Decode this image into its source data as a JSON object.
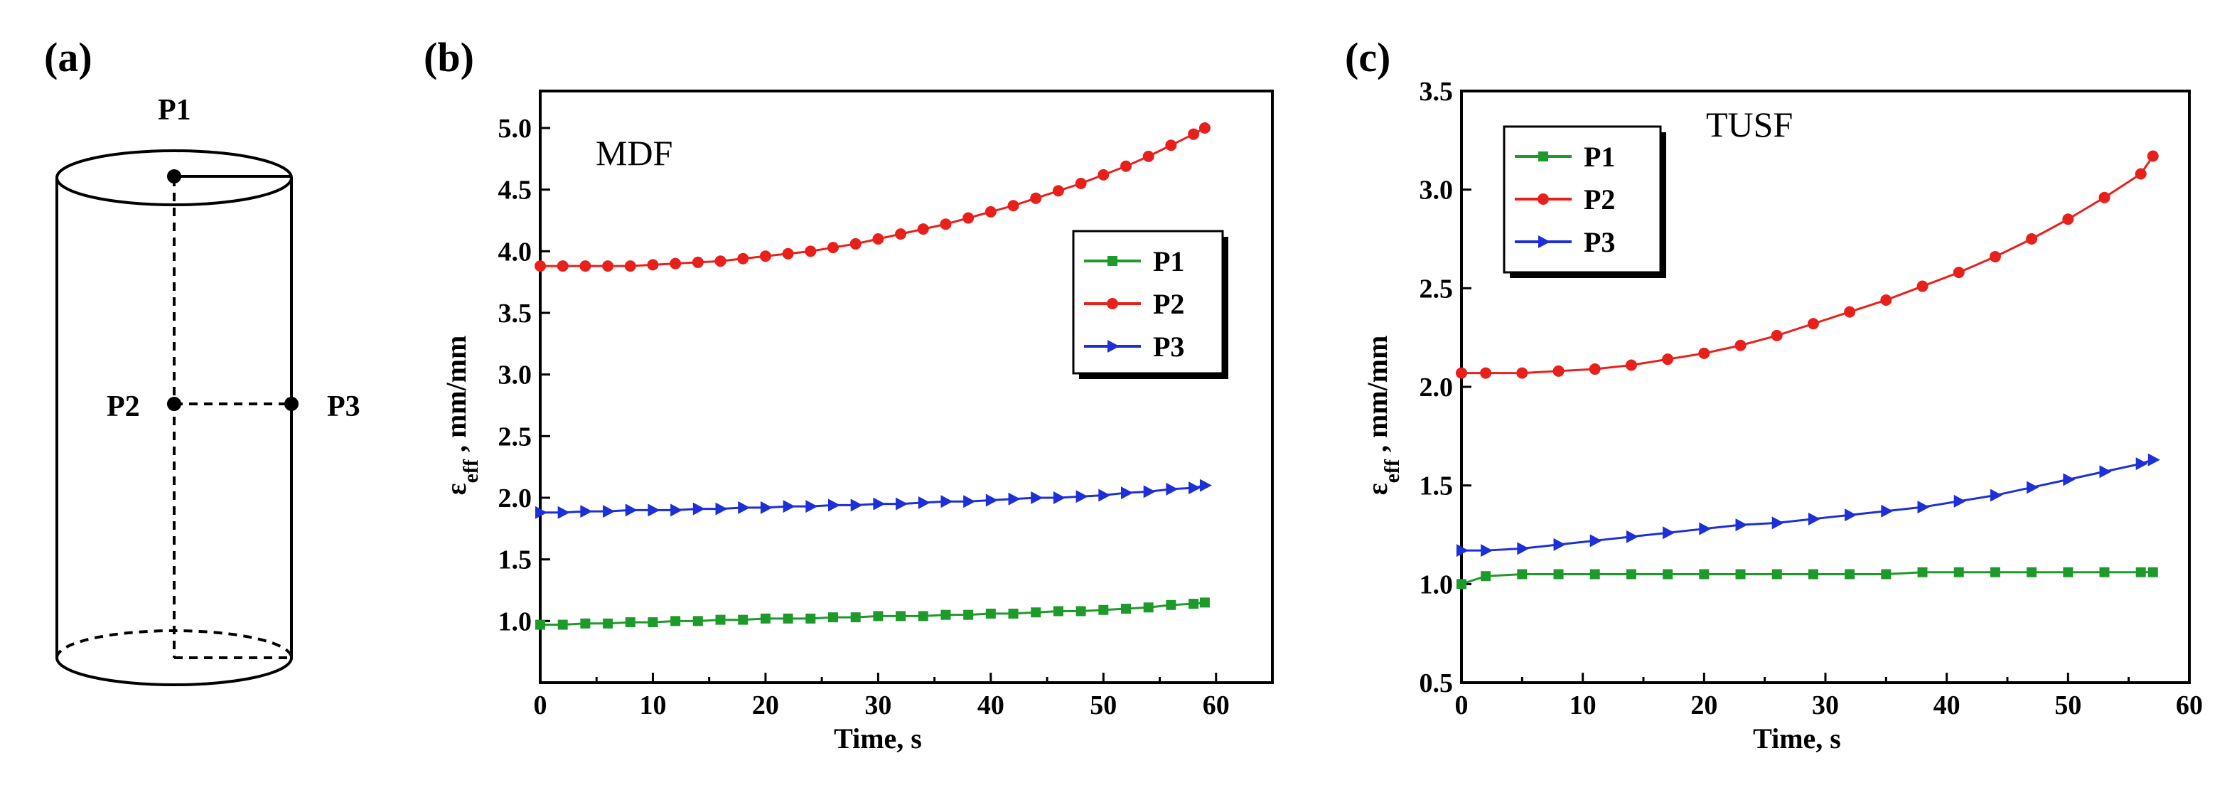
{
  "panel_a": {
    "label": "(a)",
    "points": [
      "P1",
      "P2",
      "P3"
    ]
  },
  "chart_data": [
    {
      "panel_label": "(b)",
      "type": "line",
      "title": "MDF",
      "xlabel": "Time, s",
      "ylabel_main": "ε",
      "ylabel_sub": "eff",
      "ylabel_rest": " , mm/mm",
      "xlim": [
        0,
        65
      ],
      "ylim": [
        0.5,
        5.3
      ],
      "xticks": [
        0,
        10,
        20,
        30,
        40,
        50,
        60
      ],
      "yticks": [
        1.0,
        1.5,
        2.0,
        2.5,
        3.0,
        3.5,
        4.0,
        4.5,
        5.0
      ],
      "ytick_labels": [
        "1.0",
        "1.5",
        "2.0",
        "2.5",
        "3.0",
        "3.5",
        "4.0",
        "4.5",
        "5.0"
      ],
      "legend_position": "right-middle",
      "series": [
        {
          "name": "P1",
          "color": "#1e9a2a",
          "marker": "square",
          "x": [
            0,
            2,
            4,
            6,
            8,
            10,
            12,
            14,
            16,
            18,
            20,
            22,
            24,
            26,
            28,
            30,
            32,
            34,
            36,
            38,
            40,
            42,
            44,
            46,
            48,
            50,
            52,
            54,
            56,
            58,
            59
          ],
          "y": [
            0.97,
            0.97,
            0.98,
            0.98,
            0.99,
            0.99,
            1.0,
            1.0,
            1.01,
            1.01,
            1.02,
            1.02,
            1.02,
            1.03,
            1.03,
            1.04,
            1.04,
            1.04,
            1.05,
            1.05,
            1.06,
            1.06,
            1.07,
            1.08,
            1.08,
            1.09,
            1.1,
            1.11,
            1.13,
            1.14,
            1.15
          ]
        },
        {
          "name": "P2",
          "color": "#e8201c",
          "marker": "circle",
          "x": [
            0,
            2,
            4,
            6,
            8,
            10,
            12,
            14,
            16,
            18,
            20,
            22,
            24,
            26,
            28,
            30,
            32,
            34,
            36,
            38,
            40,
            42,
            44,
            46,
            48,
            50,
            52,
            54,
            56,
            58,
            59
          ],
          "y": [
            3.88,
            3.88,
            3.88,
            3.88,
            3.88,
            3.89,
            3.9,
            3.91,
            3.92,
            3.94,
            3.96,
            3.98,
            4.0,
            4.03,
            4.06,
            4.1,
            4.14,
            4.18,
            4.22,
            4.27,
            4.32,
            4.37,
            4.43,
            4.49,
            4.55,
            4.62,
            4.69,
            4.77,
            4.86,
            4.95,
            5.0
          ]
        },
        {
          "name": "P3",
          "color": "#1d2fd6",
          "marker": "triangle-right",
          "x": [
            0,
            2,
            4,
            6,
            8,
            10,
            12,
            14,
            16,
            18,
            20,
            22,
            24,
            26,
            28,
            30,
            32,
            34,
            36,
            38,
            40,
            42,
            44,
            46,
            48,
            50,
            52,
            54,
            56,
            58,
            59
          ],
          "y": [
            1.88,
            1.88,
            1.89,
            1.89,
            1.9,
            1.9,
            1.9,
            1.91,
            1.91,
            1.92,
            1.92,
            1.93,
            1.93,
            1.94,
            1.94,
            1.95,
            1.95,
            1.96,
            1.97,
            1.97,
            1.98,
            1.99,
            2.0,
            2.0,
            2.01,
            2.02,
            2.04,
            2.05,
            2.07,
            2.08,
            2.1
          ]
        }
      ]
    },
    {
      "panel_label": "(c)",
      "type": "line",
      "title": "TUSF",
      "xlabel": "Time, s",
      "ylabel_main": "ε",
      "ylabel_sub": "eff",
      "ylabel_rest": " , mm/mm",
      "xlim": [
        0,
        60
      ],
      "ylim": [
        0.5,
        3.5
      ],
      "xticks": [
        0,
        10,
        20,
        30,
        40,
        50,
        60
      ],
      "yticks": [
        0.5,
        1.0,
        1.5,
        2.0,
        2.5,
        3.0,
        3.5
      ],
      "ytick_labels": [
        "0.5",
        "1.0",
        "1.5",
        "2.0",
        "2.5",
        "3.0",
        "3.5"
      ],
      "legend_position": "top-left",
      "series": [
        {
          "name": "P1",
          "color": "#1e9a2a",
          "marker": "square",
          "x": [
            0,
            2,
            5,
            8,
            11,
            14,
            17,
            20,
            23,
            26,
            29,
            32,
            35,
            38,
            41,
            44,
            47,
            50,
            53,
            56,
            57
          ],
          "y": [
            1.0,
            1.04,
            1.05,
            1.05,
            1.05,
            1.05,
            1.05,
            1.05,
            1.05,
            1.05,
            1.05,
            1.05,
            1.05,
            1.06,
            1.06,
            1.06,
            1.06,
            1.06,
            1.06,
            1.06,
            1.06
          ]
        },
        {
          "name": "P2",
          "color": "#e8201c",
          "marker": "circle",
          "x": [
            0,
            2,
            5,
            8,
            11,
            14,
            17,
            20,
            23,
            26,
            29,
            32,
            35,
            38,
            41,
            44,
            47,
            50,
            53,
            56,
            57
          ],
          "y": [
            2.07,
            2.07,
            2.07,
            2.08,
            2.09,
            2.11,
            2.14,
            2.17,
            2.21,
            2.26,
            2.32,
            2.38,
            2.44,
            2.51,
            2.58,
            2.66,
            2.75,
            2.85,
            2.96,
            3.08,
            3.17
          ]
        },
        {
          "name": "P3",
          "color": "#1d2fd6",
          "marker": "triangle-right",
          "x": [
            0,
            2,
            5,
            8,
            11,
            14,
            17,
            20,
            23,
            26,
            29,
            32,
            35,
            38,
            41,
            44,
            47,
            50,
            53,
            56,
            57
          ],
          "y": [
            1.17,
            1.17,
            1.18,
            1.2,
            1.22,
            1.24,
            1.26,
            1.28,
            1.3,
            1.31,
            1.33,
            1.35,
            1.37,
            1.39,
            1.42,
            1.45,
            1.49,
            1.53,
            1.57,
            1.61,
            1.63
          ]
        }
      ]
    }
  ]
}
